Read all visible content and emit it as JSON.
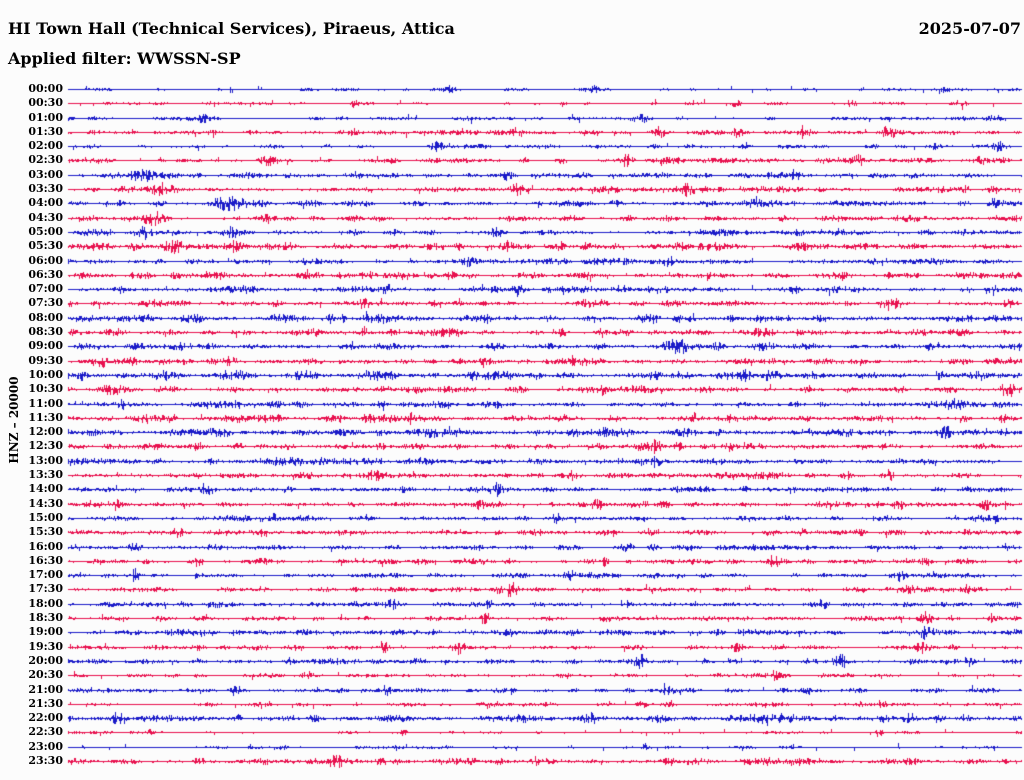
{
  "header": {
    "title": "HI Town Hall (Technical Services), Piraeus, Attica",
    "date": "2025-07-07",
    "filter": "Applied filter: WWSSN-SP"
  },
  "colors": {
    "trace_blue": "#1a1ac8",
    "trace_red": "#e8114e",
    "text": "#000000",
    "background": "#fcfcfc"
  },
  "chart_data": {
    "type": "line",
    "variant": "helicorder-seismogram",
    "station_label": "HNZ – 20000",
    "row_duration_minutes": 30,
    "start_time": "00:00",
    "end_time": "23:30",
    "grid": false,
    "note": "48 half-hour rows, alternating blue/red traces; amplitude is relative noise level per row; events are [position_fraction, amplitude_px, sigma_px]",
    "rows": [
      {
        "time": "00:00",
        "color": "blue",
        "amplitude": 0.38,
        "events": [
          [
            0.4,
            1.5,
            5
          ],
          [
            0.55,
            1.3,
            4
          ],
          [
            0.92,
            1.5,
            3
          ]
        ]
      },
      {
        "time": "00:30",
        "color": "red",
        "amplitude": 0.38,
        "events": [
          [
            0.3,
            1.8,
            3
          ],
          [
            0.7,
            1.8,
            3
          ],
          [
            0.82,
            2.0,
            4
          ],
          [
            0.94,
            2.0,
            3
          ]
        ]
      },
      {
        "time": "01:00",
        "color": "blue",
        "amplitude": 0.5,
        "events": [
          [
            0.14,
            2.2,
            8
          ],
          [
            0.6,
            2.2,
            6
          ],
          [
            0.97,
            1.8,
            5
          ]
        ]
      },
      {
        "time": "01:30",
        "color": "red",
        "amplitude": 0.8,
        "events": [
          [
            0.47,
            2.8,
            5
          ],
          [
            0.62,
            2.6,
            5
          ],
          [
            0.7,
            2.2,
            4
          ],
          [
            0.77,
            3.2,
            3
          ],
          [
            0.86,
            2.2,
            5
          ]
        ]
      },
      {
        "time": "02:00",
        "color": "blue",
        "amplitude": 0.6,
        "events": [
          [
            0.385,
            3.2,
            4
          ],
          [
            0.91,
            2.2,
            3
          ],
          [
            0.975,
            2.0,
            3
          ]
        ]
      },
      {
        "time": "02:30",
        "color": "red",
        "amplitude": 0.8,
        "events": [
          [
            0.21,
            2.2,
            5
          ],
          [
            0.585,
            2.0,
            4
          ],
          [
            0.83,
            2.2,
            5
          ],
          [
            0.955,
            2.4,
            4
          ]
        ]
      },
      {
        "time": "03:00",
        "color": "blue",
        "amplitude": 0.85,
        "events": [
          [
            0.08,
            2.2,
            8
          ],
          [
            0.3,
            2.0,
            6
          ],
          [
            0.46,
            2.4,
            4
          ],
          [
            0.76,
            2.0,
            4
          ]
        ]
      },
      {
        "time": "03:30",
        "color": "red",
        "amplitude": 1.0,
        "events": [
          [
            0.1,
            2.6,
            10
          ],
          [
            0.47,
            2.8,
            5
          ],
          [
            0.65,
            2.6,
            5
          ],
          [
            0.94,
            2.2,
            4
          ]
        ]
      },
      {
        "time": "04:00",
        "color": "blue",
        "amplitude": 0.95,
        "events": [
          [
            0.17,
            2.6,
            12
          ],
          [
            0.72,
            3.0,
            4
          ],
          [
            0.97,
            2.2,
            4
          ]
        ]
      },
      {
        "time": "04:30",
        "color": "red",
        "amplitude": 0.9,
        "events": [
          [
            0.09,
            2.4,
            8
          ],
          [
            0.21,
            2.0,
            5
          ],
          [
            0.53,
            2.2,
            4
          ]
        ]
      },
      {
        "time": "05:00",
        "color": "blue",
        "amplitude": 0.95,
        "events": [
          [
            0.08,
            2.2,
            6
          ],
          [
            0.17,
            2.8,
            6
          ],
          [
            0.45,
            2.0,
            5
          ]
        ]
      },
      {
        "time": "05:30",
        "color": "red",
        "amplitude": 1.3,
        "events": [
          [
            0.11,
            2.4,
            8
          ],
          [
            0.175,
            2.6,
            5
          ],
          [
            0.46,
            2.2,
            5
          ]
        ]
      },
      {
        "time": "06:00",
        "color": "blue",
        "amplitude": 1.0,
        "events": [
          [
            0.13,
            2.2,
            4
          ],
          [
            0.42,
            2.0,
            4
          ],
          [
            0.63,
            2.0,
            4
          ]
        ]
      },
      {
        "time": "06:30",
        "color": "red",
        "amplitude": 1.05,
        "events": [
          [
            0.15,
            2.2,
            4
          ],
          [
            0.4,
            2.2,
            4
          ],
          [
            0.67,
            2.4,
            4
          ]
        ]
      },
      {
        "time": "07:00",
        "color": "blue",
        "amplitude": 1.1,
        "events": [
          [
            0.335,
            2.4,
            5
          ],
          [
            0.47,
            3.4,
            3
          ],
          [
            0.97,
            2.6,
            4
          ]
        ]
      },
      {
        "time": "07:30",
        "color": "red",
        "amplitude": 1.1,
        "events": [
          [
            0.31,
            2.6,
            4
          ],
          [
            0.86,
            3.0,
            5
          ],
          [
            0.985,
            3.0,
            3
          ]
        ]
      },
      {
        "time": "08:00",
        "color": "blue",
        "amplitude": 1.4,
        "events": []
      },
      {
        "time": "08:30",
        "color": "red",
        "amplitude": 1.15,
        "events": [
          [
            0.31,
            3.0,
            3
          ],
          [
            0.56,
            2.2,
            4
          ]
        ]
      },
      {
        "time": "09:00",
        "color": "blue",
        "amplitude": 1.15,
        "events": [
          [
            0.64,
            3.2,
            10
          ]
        ]
      },
      {
        "time": "09:30",
        "color": "red",
        "amplitude": 1.15,
        "events": [
          [
            0.035,
            3.2,
            4
          ],
          [
            0.17,
            2.4,
            4
          ],
          [
            0.53,
            2.4,
            4
          ]
        ]
      },
      {
        "time": "10:00",
        "color": "blue",
        "amplitude": 1.75,
        "events": []
      },
      {
        "time": "10:30",
        "color": "red",
        "amplitude": 1.15,
        "events": [
          [
            0.045,
            2.6,
            4
          ],
          [
            0.33,
            2.4,
            4
          ],
          [
            0.56,
            2.4,
            4
          ],
          [
            0.985,
            2.6,
            4
          ]
        ]
      },
      {
        "time": "11:00",
        "color": "blue",
        "amplitude": 1.1,
        "events": [
          [
            0.055,
            2.4,
            4
          ],
          [
            0.33,
            2.4,
            4
          ],
          [
            0.93,
            2.8,
            7
          ]
        ]
      },
      {
        "time": "11:30",
        "color": "red",
        "amplitude": 1.25,
        "events": [
          [
            0.36,
            2.4,
            4
          ],
          [
            0.655,
            2.6,
            4
          ]
        ]
      },
      {
        "time": "12:00",
        "color": "blue",
        "amplitude": 1.35,
        "events": [
          [
            0.56,
            2.6,
            4
          ],
          [
            0.92,
            2.8,
            5
          ]
        ]
      },
      {
        "time": "12:30",
        "color": "red",
        "amplitude": 1.1,
        "events": [
          [
            0.615,
            3.4,
            4
          ],
          [
            0.64,
            3.0,
            3
          ]
        ]
      },
      {
        "time": "13:00",
        "color": "blue",
        "amplitude": 1.1,
        "events": [
          [
            0.27,
            2.2,
            4
          ],
          [
            0.615,
            3.0,
            4
          ]
        ]
      },
      {
        "time": "13:30",
        "color": "red",
        "amplitude": 1.1,
        "events": [
          [
            0.32,
            2.4,
            4
          ],
          [
            0.53,
            2.6,
            4
          ],
          [
            0.86,
            2.6,
            4
          ]
        ]
      },
      {
        "time": "14:00",
        "color": "blue",
        "amplitude": 1.05,
        "events": [
          [
            0.145,
            2.6,
            4
          ],
          [
            0.45,
            2.8,
            3
          ],
          [
            0.76,
            2.4,
            4
          ],
          [
            0.94,
            2.4,
            4
          ]
        ]
      },
      {
        "time": "14:30",
        "color": "red",
        "amplitude": 1.05,
        "events": [
          [
            0.05,
            2.4,
            4
          ],
          [
            0.43,
            2.4,
            4
          ],
          [
            0.555,
            2.6,
            4
          ],
          [
            0.87,
            2.8,
            3
          ],
          [
            0.96,
            2.6,
            4
          ]
        ]
      },
      {
        "time": "15:00",
        "color": "blue",
        "amplitude": 0.95,
        "events": [
          [
            0.215,
            2.2,
            4
          ],
          [
            0.51,
            2.8,
            4
          ],
          [
            0.97,
            2.6,
            4
          ]
        ]
      },
      {
        "time": "15:30",
        "color": "red",
        "amplitude": 0.95,
        "events": [
          [
            0.115,
            2.2,
            4
          ],
          [
            0.61,
            2.4,
            4
          ],
          [
            0.77,
            2.2,
            4
          ]
        ]
      },
      {
        "time": "16:00",
        "color": "blue",
        "amplitude": 0.95,
        "events": [
          [
            0.07,
            2.4,
            4
          ],
          [
            0.585,
            2.6,
            4
          ],
          [
            0.985,
            2.4,
            4
          ]
        ]
      },
      {
        "time": "16:30",
        "color": "red",
        "amplitude": 0.9,
        "events": [
          [
            0.135,
            2.2,
            4
          ],
          [
            0.56,
            2.6,
            4
          ],
          [
            0.74,
            2.2,
            4
          ]
        ]
      },
      {
        "time": "17:00",
        "color": "blue",
        "amplitude": 0.8,
        "events": [
          [
            0.07,
            3.0,
            3
          ],
          [
            0.525,
            2.2,
            4
          ],
          [
            0.87,
            2.4,
            4
          ]
        ]
      },
      {
        "time": "17:30",
        "color": "red",
        "amplitude": 0.85,
        "events": [
          [
            0.465,
            3.6,
            5
          ],
          [
            0.88,
            2.6,
            5
          ],
          [
            0.94,
            2.6,
            4
          ]
        ]
      },
      {
        "time": "18:00",
        "color": "blue",
        "amplitude": 0.85,
        "events": [
          [
            0.34,
            2.2,
            5
          ],
          [
            0.44,
            2.8,
            3
          ],
          [
            0.79,
            2.4,
            4
          ]
        ]
      },
      {
        "time": "18:30",
        "color": "red",
        "amplitude": 0.75,
        "events": [
          [
            0.437,
            3.6,
            3
          ],
          [
            0.9,
            2.6,
            5
          ],
          [
            0.97,
            2.4,
            4
          ]
        ]
      },
      {
        "time": "19:00",
        "color": "blue",
        "amplitude": 0.9,
        "events": [
          [
            0.345,
            2.0,
            4
          ],
          [
            0.9,
            3.4,
            6
          ]
        ]
      },
      {
        "time": "19:30",
        "color": "red",
        "amplitude": 0.8,
        "events": [
          [
            0.33,
            2.8,
            4
          ],
          [
            0.41,
            3.2,
            5
          ],
          [
            0.7,
            2.2,
            4
          ],
          [
            0.895,
            3.0,
            6
          ]
        ]
      },
      {
        "time": "20:00",
        "color": "blue",
        "amplitude": 0.9,
        "events": [
          [
            0.6,
            2.6,
            4
          ],
          [
            0.81,
            2.6,
            4
          ],
          [
            0.945,
            2.2,
            4
          ]
        ]
      },
      {
        "time": "20:30",
        "color": "red",
        "amplitude": 0.6,
        "events": [
          [
            0.25,
            1.8,
            4
          ],
          [
            0.52,
            1.8,
            4
          ],
          [
            0.74,
            1.8,
            4
          ]
        ]
      },
      {
        "time": "21:00",
        "color": "blue",
        "amplitude": 0.7,
        "events": [
          [
            0.175,
            2.6,
            4
          ],
          [
            0.335,
            2.6,
            4
          ],
          [
            0.625,
            2.2,
            4
          ],
          [
            0.775,
            2.6,
            4
          ]
        ]
      },
      {
        "time": "21:30",
        "color": "red",
        "amplitude": 0.55,
        "events": [
          [
            0.2,
            1.8,
            4
          ],
          [
            0.6,
            2.4,
            4
          ],
          [
            0.63,
            3.0,
            3
          ],
          [
            0.855,
            2.0,
            4
          ]
        ]
      },
      {
        "time": "22:00",
        "color": "blue",
        "amplitude": 1.45,
        "events": [
          [
            0.05,
            2.4,
            4
          ],
          [
            0.55,
            2.4,
            3
          ],
          [
            0.88,
            2.2,
            4
          ]
        ]
      },
      {
        "time": "22:30",
        "color": "red",
        "amplitude": 0.35,
        "events": [
          [
            0.085,
            1.6,
            3
          ],
          [
            0.35,
            1.6,
            3
          ],
          [
            0.85,
            2.8,
            2
          ]
        ]
      },
      {
        "time": "23:00",
        "color": "blue",
        "amplitude": 0.35,
        "events": [
          [
            0.225,
            1.6,
            3
          ],
          [
            0.345,
            1.6,
            3
          ],
          [
            0.605,
            2.4,
            3
          ]
        ]
      },
      {
        "time": "23:30",
        "color": "red",
        "amplitude": 1.15,
        "events": [
          [
            0.28,
            3.0,
            4
          ],
          [
            0.49,
            2.2,
            4
          ]
        ]
      }
    ]
  }
}
